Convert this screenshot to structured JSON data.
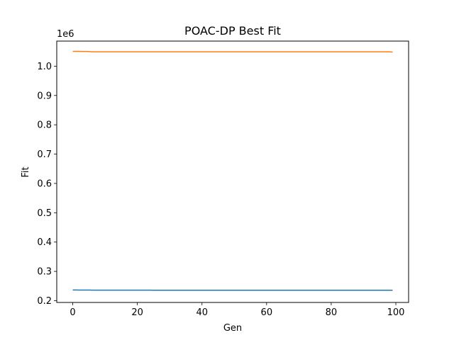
{
  "chart_data": {
    "type": "line",
    "title": "POAC-DP Best Fit",
    "xlabel": "Gen",
    "ylabel": "Fit",
    "y_offset_label": "1e6",
    "xlim": [
      -4.95,
      103.95
    ],
    "ylim": [
      0.194,
      1.0855
    ],
    "y_scale_factor": 1000000,
    "x_ticks": [
      0,
      20,
      40,
      60,
      80,
      100
    ],
    "x_tick_labels": [
      "0",
      "20",
      "40",
      "60",
      "80",
      "100"
    ],
    "y_ticks": [
      0.2,
      0.3,
      0.4,
      0.5,
      0.6,
      0.7,
      0.8,
      0.9,
      1.0
    ],
    "y_tick_labels": [
      "0.2",
      "0.3",
      "0.4",
      "0.5",
      "0.6",
      "0.7",
      "0.8",
      "0.9",
      "1.0"
    ],
    "grid": false,
    "legend": "none",
    "series": [
      {
        "color": "#1f77b4",
        "x": [
          0,
          1,
          2,
          3,
          4,
          5,
          6,
          7,
          8,
          9,
          10,
          11,
          12,
          13,
          14,
          15,
          16,
          17,
          18,
          19,
          20,
          21,
          22,
          23,
          24,
          25,
          26,
          27,
          28,
          29,
          30,
          31,
          32,
          33,
          34,
          35,
          36,
          37,
          38,
          39,
          40,
          41,
          42,
          43,
          44,
          45,
          46,
          47,
          48,
          49,
          50,
          51,
          52,
          53,
          54,
          55,
          56,
          57,
          58,
          59,
          60,
          61,
          62,
          63,
          64,
          65,
          66,
          67,
          68,
          69,
          70,
          71,
          72,
          73,
          74,
          75,
          76,
          77,
          78,
          79,
          80,
          81,
          82,
          83,
          84,
          85,
          86,
          87,
          88,
          89,
          90,
          91,
          92,
          93,
          94,
          95,
          96,
          97,
          98,
          99
        ],
        "y": [
          0.2365,
          0.2365,
          0.2364,
          0.2364,
          0.2363,
          0.2363,
          0.2361,
          0.2361,
          0.2361,
          0.2361,
          0.2361,
          0.2361,
          0.2361,
          0.2361,
          0.2361,
          0.2361,
          0.2361,
          0.2361,
          0.2361,
          0.2361,
          0.2361,
          0.2361,
          0.2361,
          0.2361,
          0.2361,
          0.2358,
          0.2358,
          0.2358,
          0.2358,
          0.2358,
          0.2358,
          0.2358,
          0.2358,
          0.2358,
          0.2358,
          0.2358,
          0.2358,
          0.2358,
          0.2358,
          0.2358,
          0.2358,
          0.2358,
          0.2358,
          0.2358,
          0.2358,
          0.2358,
          0.2358,
          0.2358,
          0.2358,
          0.2358,
          0.2358,
          0.2358,
          0.2358,
          0.2358,
          0.2358,
          0.2358,
          0.2358,
          0.2358,
          0.2358,
          0.2358,
          0.2358,
          0.2358,
          0.2358,
          0.2358,
          0.2358,
          0.2358,
          0.2358,
          0.2358,
          0.2358,
          0.2358,
          0.2358,
          0.2358,
          0.2358,
          0.2358,
          0.2358,
          0.2358,
          0.2358,
          0.2358,
          0.2358,
          0.2358,
          0.2358,
          0.2358,
          0.2358,
          0.2358,
          0.2358,
          0.2358,
          0.2358,
          0.2358,
          0.2358,
          0.2358,
          0.2358,
          0.2358,
          0.2358,
          0.2358,
          0.2358,
          0.2358,
          0.2358,
          0.2358,
          0.2358,
          0.2358
        ]
      },
      {
        "color": "#ff7f0e",
        "x": [
          0,
          1,
          2,
          3,
          4,
          5,
          6,
          7,
          8,
          9,
          10,
          11,
          12,
          13,
          14,
          15,
          16,
          17,
          18,
          19,
          20,
          21,
          22,
          23,
          24,
          25,
          26,
          27,
          28,
          29,
          30,
          31,
          32,
          33,
          34,
          35,
          36,
          37,
          38,
          39,
          40,
          41,
          42,
          43,
          44,
          45,
          46,
          47,
          48,
          49,
          50,
          51,
          52,
          53,
          54,
          55,
          56,
          57,
          58,
          59,
          60,
          61,
          62,
          63,
          64,
          65,
          66,
          67,
          68,
          69,
          70,
          71,
          72,
          73,
          74,
          75,
          76,
          77,
          78,
          79,
          80,
          81,
          82,
          83,
          84,
          85,
          86,
          87,
          88,
          89,
          90,
          91,
          92,
          93,
          94,
          95,
          96,
          97,
          98,
          99
        ],
        "y": [
          1.0505,
          1.0505,
          1.0505,
          1.0503,
          1.0502,
          1.0499,
          1.0489,
          1.0489,
          1.0489,
          1.0489,
          1.0489,
          1.0489,
          1.0489,
          1.0489,
          1.0489,
          1.0489,
          1.0489,
          1.0489,
          1.0489,
          1.0489,
          1.0489,
          1.0489,
          1.0489,
          1.0489,
          1.0489,
          1.0489,
          1.0489,
          1.0489,
          1.0489,
          1.0489,
          1.0489,
          1.0489,
          1.0489,
          1.0489,
          1.0489,
          1.0489,
          1.0489,
          1.0489,
          1.0489,
          1.0489,
          1.0489,
          1.0489,
          1.0489,
          1.0489,
          1.0489,
          1.0489,
          1.0489,
          1.0489,
          1.0489,
          1.0489,
          1.0489,
          1.0489,
          1.0489,
          1.0489,
          1.0489,
          1.0489,
          1.0489,
          1.0489,
          1.0489,
          1.0489,
          1.0489,
          1.0489,
          1.0489,
          1.0489,
          1.0489,
          1.0489,
          1.0489,
          1.0489,
          1.0489,
          1.0489,
          1.0489,
          1.0489,
          1.0489,
          1.0489,
          1.0489,
          1.0489,
          1.0489,
          1.0489,
          1.0489,
          1.0489,
          1.0489,
          1.0489,
          1.0489,
          1.0489,
          1.0489,
          1.0489,
          1.0489,
          1.0489,
          1.0489,
          1.0489,
          1.0489,
          1.0489,
          1.0489,
          1.0489,
          1.0489,
          1.0489,
          1.0489,
          1.0489,
          1.0489,
          1.0481
        ]
      }
    ]
  }
}
